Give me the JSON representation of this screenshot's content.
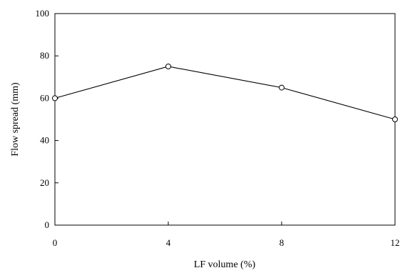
{
  "chart_data": {
    "type": "line",
    "xlabel": "LF volume (%)",
    "ylabel": "Flow spread (mm)",
    "x": [
      0,
      4,
      8,
      12
    ],
    "series": [
      {
        "values": [
          60,
          75,
          65,
          50
        ]
      }
    ],
    "xlim": [
      0,
      12
    ],
    "ylim": [
      0,
      100
    ],
    "xticks": [
      "0",
      "4",
      "8",
      "12"
    ],
    "yticks": [
      "0",
      "20",
      "40",
      "60",
      "80",
      "100"
    ],
    "grid": false,
    "marker": "open-circle",
    "line_color": "#000000"
  }
}
